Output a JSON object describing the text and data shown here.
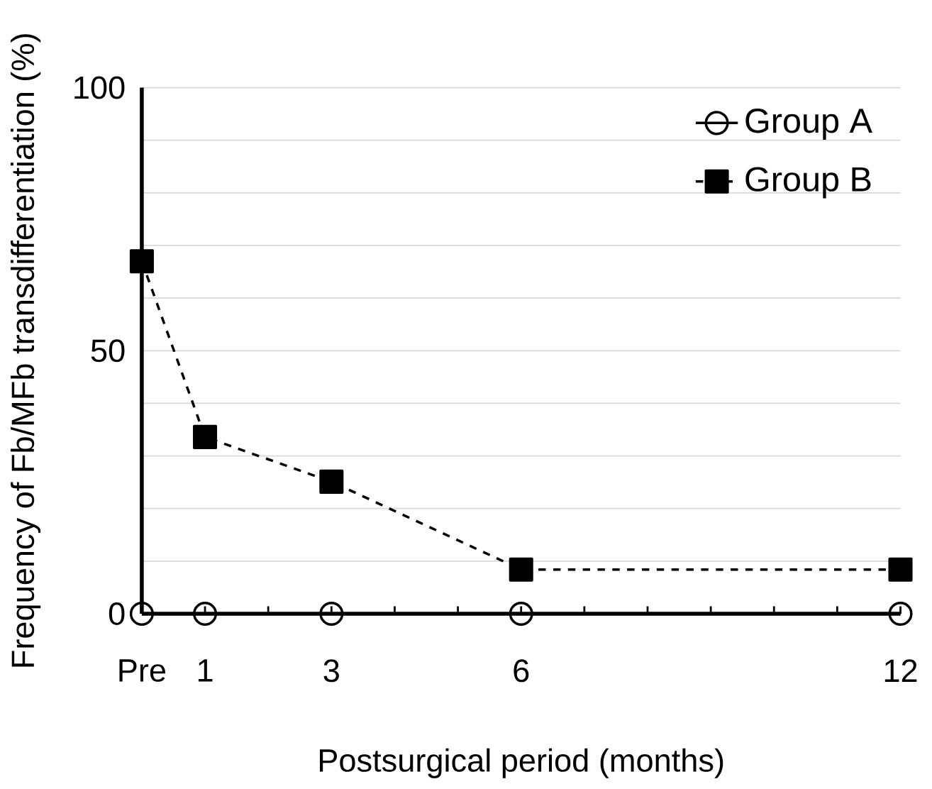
{
  "chart_data": {
    "type": "line",
    "xlabel": "Postsurgical period (months)",
    "ylabel": "Frequency of Fb/MFb transdifferentiation (%)",
    "x": [
      0,
      1,
      3,
      6,
      12
    ],
    "series": [
      {
        "name": "Group A",
        "color": "#000000",
        "marker": "circle",
        "line_style": "solid",
        "values": [
          0,
          0,
          0,
          0,
          0
        ]
      },
      {
        "name": "Group B",
        "color": "#000000",
        "marker": "square",
        "line_style": "dashed",
        "values": [
          67,
          33.6,
          25.1,
          8.4,
          8.4
        ]
      }
    ],
    "xlim": [
      0,
      12
    ],
    "ylim": [
      0,
      100
    ],
    "xticks": [
      {
        "value": 0,
        "label": "Pre"
      },
      1,
      {
        "value": 2,
        "label": null
      },
      3,
      {
        "value": 4,
        "label": null
      },
      {
        "value": 5,
        "label": null
      },
      6,
      {
        "value": 7,
        "label": null
      },
      {
        "value": 8,
        "label": null
      },
      {
        "value": 9,
        "label": null
      },
      {
        "value": 10,
        "label": null
      },
      {
        "value": 11,
        "label": null
      },
      12
    ],
    "yticks": [
      0,
      {
        "value": 10,
        "label": null
      },
      {
        "value": 20,
        "label": null
      },
      {
        "value": 30,
        "label": null
      },
      {
        "value": 40,
        "label": null
      },
      50,
      {
        "value": 60,
        "label": null
      },
      {
        "value": 70,
        "label": null
      },
      {
        "value": 80,
        "label": null
      },
      {
        "value": 90,
        "label": null
      },
      100
    ],
    "grid": "y",
    "legend": "top right"
  }
}
